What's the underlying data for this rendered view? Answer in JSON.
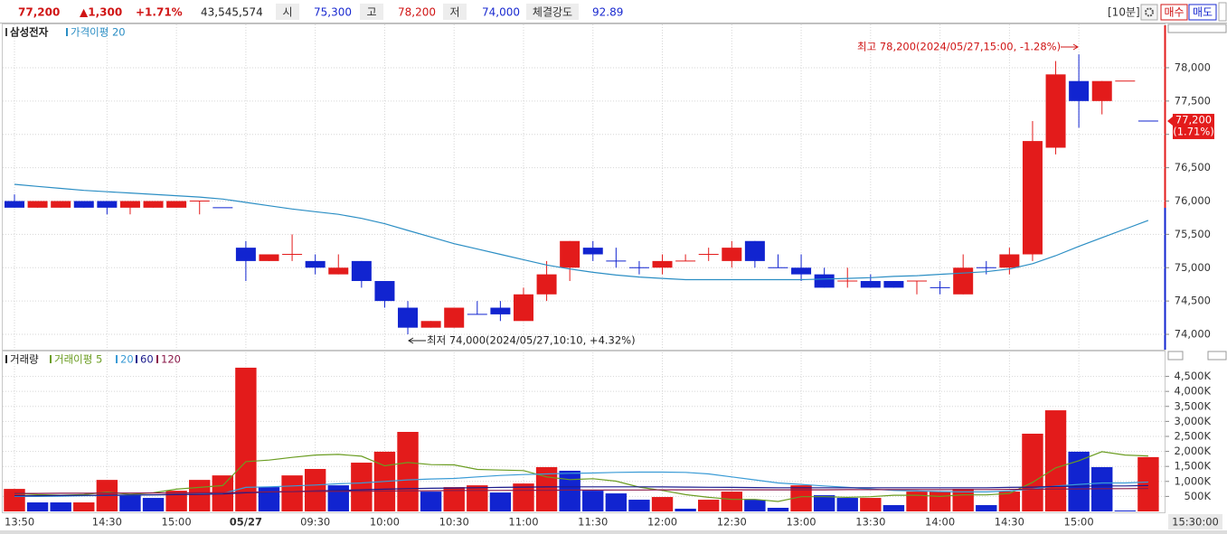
{
  "header": {
    "price": "77,200",
    "change": "▲1,300",
    "change_pct": "+1.71%",
    "volume": "43,545,574",
    "open_label": "시",
    "open": "75,300",
    "high_label": "고",
    "high": "78,200",
    "low_label": "저",
    "low": "74,000",
    "strength_label": "체결강도",
    "strength": "92.89",
    "interval": "[10분]",
    "buy": "매수",
    "sell": "매도"
  },
  "chart_data": [
    {
      "type": "candlestick",
      "series": [
        {
          "name": "삼성전자",
          "open": [
            76000,
            75900,
            75900,
            76000,
            76000,
            75900,
            75900,
            75900,
            76000,
            75900,
            75300,
            75100,
            75200,
            75100,
            74900,
            75100,
            74800,
            74400,
            74100,
            74100,
            74300,
            74400,
            74200,
            74600,
            75000,
            75300,
            75100,
            75000,
            75000,
            75100,
            75200,
            75100,
            75400,
            75000,
            75000,
            74900,
            74800,
            74800,
            74800,
            74800,
            74700,
            74600,
            75000,
            75000,
            75200,
            76800,
            77800,
            77500,
            77800,
            77200
          ],
          "high": [
            76100,
            76000,
            76000,
            76000,
            76000,
            76000,
            76000,
            76000,
            76000,
            75900,
            75400,
            75200,
            75500,
            75200,
            75200,
            75100,
            74800,
            74500,
            74200,
            74400,
            74500,
            74500,
            74700,
            75100,
            75400,
            75400,
            75300,
            75100,
            75200,
            75200,
            75300,
            75400,
            75400,
            75200,
            75200,
            75000,
            75000,
            74900,
            74800,
            74800,
            74800,
            75200,
            75100,
            75300,
            77200,
            78100,
            78200,
            77800,
            77800,
            77200
          ],
          "low": [
            75900,
            75900,
            75900,
            75900,
            75800,
            75800,
            75900,
            75900,
            75800,
            75900,
            74800,
            75100,
            75100,
            74900,
            74900,
            74700,
            74400,
            74000,
            74100,
            74100,
            74300,
            74200,
            74200,
            74500,
            74800,
            75100,
            75000,
            74900,
            74900,
            75100,
            75100,
            75000,
            75000,
            75000,
            74800,
            74700,
            74700,
            74700,
            74700,
            74600,
            74600,
            74600,
            74900,
            74900,
            75100,
            76700,
            77100,
            77300,
            77800,
            77200
          ],
          "close": [
            75900,
            76000,
            76000,
            75900,
            75900,
            76000,
            76000,
            76000,
            76000,
            75900,
            75100,
            75200,
            75200,
            75000,
            75000,
            74800,
            74500,
            74100,
            74200,
            74400,
            74300,
            74300,
            74600,
            74900,
            75400,
            75200,
            75100,
            75000,
            75100,
            75100,
            75200,
            75300,
            75100,
            75000,
            74900,
            74700,
            74800,
            74700,
            74700,
            74800,
            74700,
            75000,
            75000,
            75200,
            76900,
            77900,
            77500,
            77800,
            77800,
            77200
          ],
          "colors": [
            "#1124d0",
            "#e31b1b",
            "#e31b1b",
            "#1124d0",
            "#1124d0",
            "#e31b1b",
            "#e31b1b",
            "#e31b1b",
            "#e31b1b",
            "#1124d0",
            "#1124d0",
            "#e31b1b",
            "#e31b1b",
            "#1124d0",
            "#e31b1b",
            "#1124d0",
            "#1124d0",
            "#1124d0",
            "#e31b1b",
            "#e31b1b",
            "#1124d0",
            "#1124d0",
            "#e31b1b",
            "#e31b1b",
            "#e31b1b",
            "#1124d0",
            "#1124d0",
            "#1124d0",
            "#e31b1b",
            "#e31b1b",
            "#e31b1b",
            "#e31b1b",
            "#1124d0",
            "#1124d0",
            "#1124d0",
            "#1124d0",
            "#e31b1b",
            "#1124d0",
            "#1124d0",
            "#e31b1b",
            "#1124d0",
            "#e31b1b",
            "#1124d0",
            "#e31b1b",
            "#e31b1b",
            "#e31b1b",
            "#1124d0",
            "#e31b1b",
            "#e31b1b",
            "#1124d0"
          ]
        },
        {
          "name": "가격이평 20",
          "color": "#2b8ec4",
          "values": [
            76250,
            76220,
            76190,
            76160,
            76140,
            76120,
            76100,
            76080,
            76060,
            76030,
            75980,
            75930,
            75880,
            75840,
            75800,
            75740,
            75660,
            75560,
            75460,
            75360,
            75280,
            75200,
            75120,
            75040,
            74980,
            74930,
            74890,
            74860,
            74840,
            74820,
            74820,
            74820,
            74820,
            74820,
            74820,
            74830,
            74840,
            74850,
            74870,
            74880,
            74900,
            74920,
            74940,
            74980,
            75060,
            75180,
            75320,
            75450,
            75580,
            75710
          ]
        }
      ],
      "ylim": [
        73770,
        78650
      ],
      "yticks": [
        {
          "value": 74000,
          "label": "74,000"
        },
        {
          "value": 74500,
          "label": "74,500"
        },
        {
          "value": 75000,
          "label": "75,000"
        },
        {
          "value": 75500,
          "label": "75,500"
        },
        {
          "value": 76000,
          "label": "76,000"
        },
        {
          "value": 76500,
          "label": "76,500"
        },
        {
          "value": 77000,
          "label": "77,000"
        },
        {
          "value": 77500,
          "label": "77,500"
        },
        {
          "value": 78000,
          "label": "78,000"
        }
      ],
      "grid": true,
      "high_annotation": "최고 78,200(2024/05/27,15:00, -1.28%)",
      "low_annotation": "최저 74,000(2024/05/27,10:10, +4.32%)",
      "last": {
        "value": 77200,
        "label": "77,200"
      },
      "last_pct": "(1.71%)",
      "last_color": "#e31b1b"
    },
    {
      "type": "bar",
      "categories": [
        "13:50",
        null,
        null,
        null,
        "14:30",
        null,
        null,
        "15:00",
        null,
        null,
        "05/27",
        null,
        null,
        "09:30",
        null,
        null,
        "10:00",
        null,
        null,
        "10:30",
        null,
        null,
        "11:00",
        null,
        null,
        "11:30",
        null,
        null,
        "12:00",
        null,
        null,
        "12:30",
        null,
        null,
        "13:00",
        null,
        null,
        "13:30",
        null,
        null,
        "14:00",
        null,
        null,
        "14:30",
        null,
        null,
        "15:00",
        null,
        null,
        null
      ],
      "series": [
        {
          "name": "거래량",
          "values": [
            750000,
            300000,
            300000,
            300000,
            1050000,
            540000,
            450000,
            690000,
            1050000,
            1200000,
            4790000,
            810000,
            1200000,
            1415000,
            870000,
            1625000,
            1990000,
            2650000,
            660000,
            810000,
            870000,
            630000,
            930000,
            1475000,
            1355000,
            690000,
            600000,
            390000,
            480000,
            90000,
            390000,
            660000,
            390000,
            120000,
            870000,
            540000,
            450000,
            450000,
            210000,
            660000,
            660000,
            750000,
            210000,
            660000,
            2590000,
            3370000,
            1990000,
            1475000,
            30000,
            1810000
          ],
          "colors": [
            "#e31b1b",
            "#1124d0",
            "#1124d0",
            "#e31b1b",
            "#e31b1b",
            "#1124d0",
            "#1124d0",
            "#e31b1b",
            "#e31b1b",
            "#e31b1b",
            "#e31b1b",
            "#1124d0",
            "#e31b1b",
            "#e31b1b",
            "#1124d0",
            "#e31b1b",
            "#e31b1b",
            "#e31b1b",
            "#1124d0",
            "#e31b1b",
            "#e31b1b",
            "#1124d0",
            "#e31b1b",
            "#e31b1b",
            "#1124d0",
            "#1124d0",
            "#1124d0",
            "#1124d0",
            "#e31b1b",
            "#1124d0",
            "#e31b1b",
            "#e31b1b",
            "#1124d0",
            "#1124d0",
            "#e31b1b",
            "#1124d0",
            "#1124d0",
            "#e31b1b",
            "#1124d0",
            "#e31b1b",
            "#e31b1b",
            "#e31b1b",
            "#1124d0",
            "#e31b1b",
            "#e31b1b",
            "#e31b1b",
            "#1124d0",
            "#1124d0",
            "#1124d0",
            "#e31b1b"
          ]
        },
        {
          "name": "거래이평 5",
          "color": "#6b9d22",
          "values": [
            600000,
            560000,
            540000,
            560000,
            640000,
            570000,
            620000,
            740000,
            800000,
            860000,
            1660000,
            1710000,
            1800000,
            1880000,
            1900000,
            1840000,
            1520000,
            1630000,
            1560000,
            1550000,
            1400000,
            1380000,
            1360000,
            1150000,
            1060000,
            1090000,
            1010000,
            810000,
            700000,
            560000,
            470000,
            400000,
            400000,
            330000,
            490000,
            490000,
            470000,
            490000,
            540000,
            540000,
            500000,
            550000,
            550000,
            600000,
            970000,
            1450000,
            1690000,
            1990000,
            1880000,
            1850000
          ]
        },
        {
          "name": "20",
          "color": "#3a9bd6",
          "values": [
            500000,
            500000,
            510000,
            520000,
            530000,
            540000,
            550000,
            560000,
            580000,
            600000,
            800000,
            820000,
            850000,
            880000,
            920000,
            950000,
            1000000,
            1050000,
            1080000,
            1100000,
            1150000,
            1200000,
            1230000,
            1250000,
            1270000,
            1280000,
            1300000,
            1310000,
            1310000,
            1300000,
            1250000,
            1150000,
            1050000,
            950000,
            900000,
            850000,
            800000,
            750000,
            700000,
            680000,
            660000,
            650000,
            650000,
            680000,
            750000,
            850000,
            900000,
            950000,
            950000,
            980000
          ]
        },
        {
          "name": "60",
          "color": "#1b1b8c",
          "values": [
            520000,
            525000,
            530000,
            535000,
            540000,
            545000,
            550000,
            560000,
            570000,
            580000,
            620000,
            640000,
            660000,
            680000,
            700000,
            720000,
            740000,
            760000,
            770000,
            780000,
            790000,
            800000,
            810000,
            815000,
            820000,
            820000,
            820000,
            820000,
            815000,
            810000,
            805000,
            800000,
            795000,
            790000,
            790000,
            790000,
            790000,
            790000,
            790000,
            790000,
            790000,
            790000,
            790000,
            800000,
            810000,
            830000,
            840000,
            850000,
            850000,
            860000
          ]
        },
        {
          "name": "120",
          "color": "#8b1a4a",
          "values": [
            600000,
            600000,
            605000,
            605000,
            610000,
            610000,
            615000,
            615000,
            620000,
            620000,
            640000,
            650000,
            660000,
            665000,
            670000,
            675000,
            680000,
            685000,
            690000,
            695000,
            700000,
            700000,
            705000,
            705000,
            710000,
            710000,
            715000,
            715000,
            720000,
            720000,
            720000,
            720000,
            720000,
            720000,
            720000,
            720000,
            725000,
            725000,
            725000,
            725000,
            725000,
            730000,
            730000,
            735000,
            740000,
            745000,
            750000,
            755000,
            760000,
            765000
          ]
        }
      ],
      "ylim": [
        0,
        5300000
      ],
      "yticks": [
        {
          "value": 500000,
          "label": "500K"
        },
        {
          "value": 1000000,
          "label": "1,000K"
        },
        {
          "value": 1500000,
          "label": "1,500K"
        },
        {
          "value": 2000000,
          "label": "2,000K"
        },
        {
          "value": 2500000,
          "label": "2,500K"
        },
        {
          "value": 3000000,
          "label": "3,000K"
        },
        {
          "value": 3500000,
          "label": "3,500K"
        },
        {
          "value": 4000000,
          "label": "4,000K"
        },
        {
          "value": 4500000,
          "label": "4,500K"
        }
      ],
      "grid": true,
      "cursor_label": "15:30:00"
    }
  ]
}
